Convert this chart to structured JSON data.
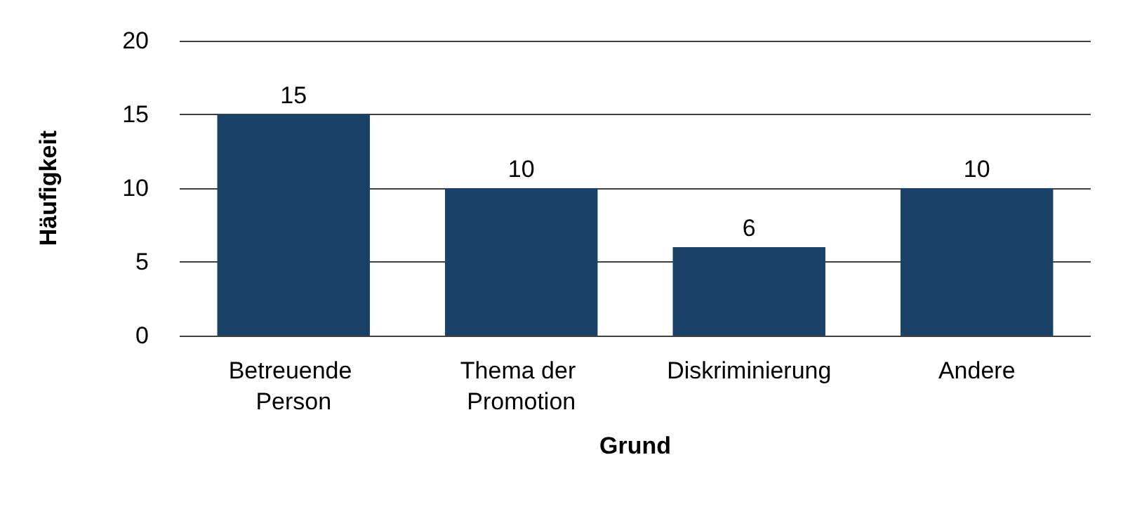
{
  "chart_data": {
    "type": "bar",
    "xlabel": "Grund",
    "ylabel": "Häufigkeit",
    "categories": [
      "Betreuende Person",
      "Thema der Promotion",
      "Diskriminierung",
      "Andere"
    ],
    "values": [
      15,
      10,
      6,
      10
    ],
    "color": "#1a4268",
    "ylim": [
      0,
      20
    ],
    "yticks": [
      0,
      5,
      10,
      15,
      20
    ],
    "grid": "y",
    "data_labels": true
  }
}
